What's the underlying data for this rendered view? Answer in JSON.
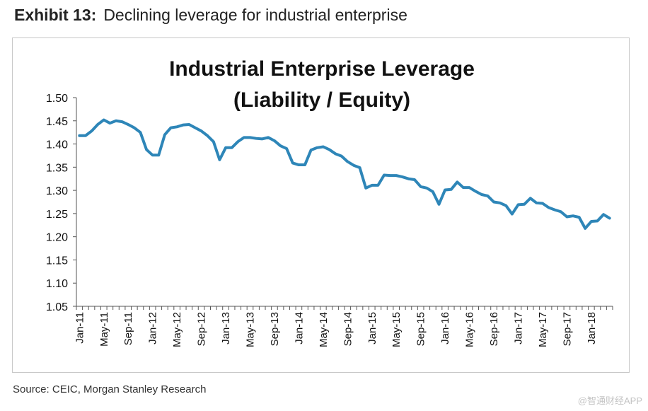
{
  "header": {
    "exhibit_label": "Exhibit 13:",
    "exhibit_title": "Declining leverage for industrial enterprise"
  },
  "footer": {
    "source": "Source: CEIC, Morgan Stanley Research",
    "watermark": "@智通财经APP"
  },
  "colors": {
    "line": "#2E86B8",
    "axis": "#555555",
    "frame": "#c8c8c8"
  },
  "chart_data": {
    "type": "line",
    "title_line1": "Industrial Enterprise Leverage",
    "title_line2": "(Liability / Equity)",
    "xlabel": "",
    "ylabel": "",
    "ylim": [
      1.05,
      1.5
    ],
    "yticks": [
      "1.50",
      "1.45",
      "1.40",
      "1.35",
      "1.30",
      "1.25",
      "1.20",
      "1.15",
      "1.10",
      "1.05"
    ],
    "xtick_labels": [
      "Jan-11",
      "May-11",
      "Sep-11",
      "Jan-12",
      "May-12",
      "Sep-12",
      "Jan-13",
      "May-13",
      "Sep-13",
      "Jan-14",
      "May-14",
      "Sep-14",
      "Jan-15",
      "May-15",
      "Sep-15",
      "Jan-16",
      "May-16",
      "Sep-16",
      "Jan-17",
      "May-17",
      "Sep-17",
      "Jan-18"
    ],
    "grid": false,
    "series": [
      {
        "name": "Liability / Equity",
        "start": "Jan-11",
        "frequency": "monthly",
        "values": [
          1.418,
          1.418,
          1.428,
          1.442,
          1.452,
          1.445,
          1.45,
          1.448,
          1.442,
          1.435,
          1.425,
          1.388,
          1.376,
          1.376,
          1.42,
          1.435,
          1.437,
          1.441,
          1.442,
          1.435,
          1.428,
          1.418,
          1.405,
          1.366,
          1.392,
          1.392,
          1.405,
          1.414,
          1.414,
          1.412,
          1.411,
          1.414,
          1.407,
          1.396,
          1.39,
          1.359,
          1.355,
          1.355,
          1.387,
          1.392,
          1.394,
          1.388,
          1.379,
          1.374,
          1.362,
          1.354,
          1.349,
          1.305,
          1.311,
          1.311,
          1.333,
          1.332,
          1.332,
          1.329,
          1.325,
          1.323,
          1.308,
          1.305,
          1.297,
          1.27,
          1.301,
          1.302,
          1.318,
          1.306,
          1.306,
          1.298,
          1.291,
          1.288,
          1.275,
          1.273,
          1.267,
          1.249,
          1.269,
          1.27,
          1.283,
          1.273,
          1.272,
          1.263,
          1.258,
          1.254,
          1.243,
          1.245,
          1.242,
          1.218,
          1.233,
          1.234,
          1.248,
          1.24
        ]
      }
    ]
  }
}
